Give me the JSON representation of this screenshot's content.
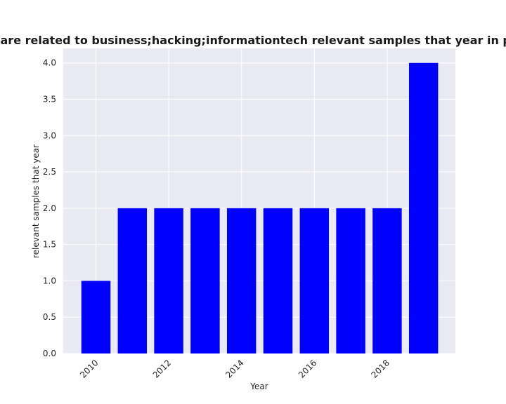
{
  "chart_data": {
    "type": "bar",
    "title": "Categories are related to business;hacking;informationtech relevant samples that year in privacy policy",
    "xlabel": "Year",
    "ylabel": "relevant samples that year",
    "x": [
      2010,
      2011,
      2012,
      2013,
      2014,
      2015,
      2016,
      2017,
      2018,
      2019
    ],
    "values": [
      1,
      2,
      2,
      2,
      2,
      2,
      2,
      2,
      2,
      4
    ],
    "x_ticks": [
      "2010",
      "2012",
      "2014",
      "2016",
      "2018"
    ],
    "y_ticks": [
      "0.0",
      "0.5",
      "1.0",
      "1.5",
      "2.0",
      "2.5",
      "3.0",
      "3.5",
      "4.0"
    ],
    "ylim": [
      0,
      4.2
    ],
    "bar_color": "#0000ff",
    "plot_background": "#eaeaf2",
    "grid": true
  }
}
